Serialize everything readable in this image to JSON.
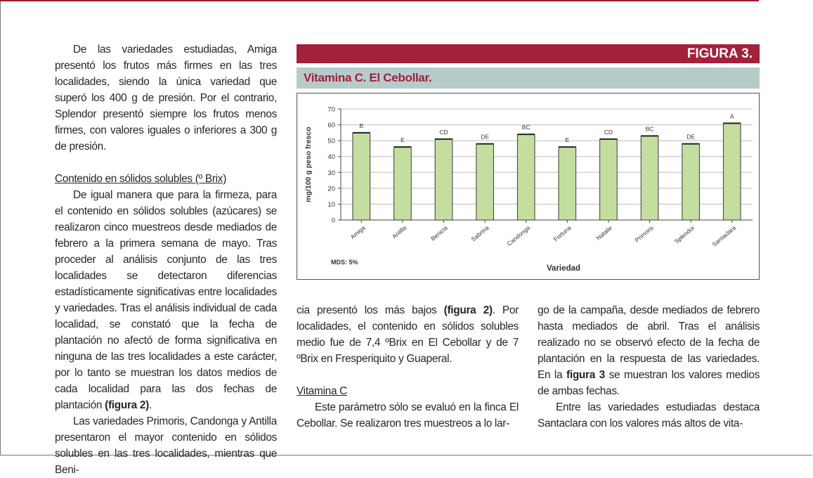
{
  "figure": {
    "label": "FIGURA 3.",
    "title": "Vitamina C. El Cebollar.",
    "mds_note": "MDS: 5%"
  },
  "chart_data": {
    "type": "bar",
    "categories": [
      "Amiga",
      "Antilla",
      "Benicia",
      "Sabrina",
      "Candonga",
      "Fortuna",
      "Natalie",
      "Primoris",
      "Splendor",
      "Santaclara"
    ],
    "values": [
      55,
      46,
      51,
      48,
      54,
      46,
      51,
      53,
      48,
      61
    ],
    "letters": [
      "B",
      "E",
      "CD",
      "DE",
      "BC",
      "E",
      "CD",
      "BC",
      "DE",
      "A"
    ],
    "xlabel": "Variedad",
    "ylabel": "mg/100 g peso fresco",
    "ylim": [
      0,
      70
    ],
    "yticks": [
      0,
      10,
      20,
      30,
      40,
      50,
      60,
      70
    ],
    "grid": true,
    "bar_color": "#c4dea0",
    "bar_edge": "#3a3a3a"
  },
  "left_column": {
    "p1": "De las variedades estudiadas, Amiga presentó los frutos más firmes en las tres localidades, siendo la única variedad que superó los 400 g de presión. Por el contrario, Splendor presentó siempre los frutos menos firmes, con valores iguales o inferiores a 300 g de presión.",
    "heading": "Contenido en sólidos solubles (º Brix)",
    "p2_text": "De igual manera que para la firmeza, para el contenido en sólidos solubles (azúcares) se realizaron cinco muestreos desde mediados de febrero a la primera semana de mayo. Tras proceder al análisis conjunto de las tres localidades se detectaron diferencias estadísticamente significativas entre localidades y variedades. Tras el análisis individual de cada localidad, se constató que la fecha de plantación no afectó de forma significativa en ninguna de las tres localidades a este carácter, por lo tanto se muestran los datos medios de cada localidad para las dos fechas de plantación ",
    "p2_bold": "(figura 2)",
    "p2_end": ".",
    "p3": "Las variedades Primoris, Candonga y Antilla presentaron el mayor contenido en sólidos solubles en las tres localidades, mientras que Beni-"
  },
  "mid_column": {
    "p1_start": "cia presentó los más bajos ",
    "p1_bold": "(figura 2)",
    "p1_rest": ". Por localidades, el contenido en sólidos solubles medio fue de 7,4 ºBrix en El Cebollar y de 7 ºBrix en Fresperiquito y Guaperal.",
    "heading": "Vitamina C",
    "p2": "Este parámetro sólo se evaluó en la finca El Cebollar. Se realizaron tres muestreos a lo lar-"
  },
  "right_column": {
    "p1_start": "go de la campaña, desde mediados de febrero hasta mediados de abril. Tras el análisis realizado no se observó efecto de la fecha de plantación en la respuesta de las variedades. En la ",
    "p1_bold": "figura 3",
    "p1_rest": " se muestran los valores medios de ambas fechas.",
    "p2": "Entre las variedades estudiadas destaca Santaclara con los valores más altos de vita-"
  }
}
